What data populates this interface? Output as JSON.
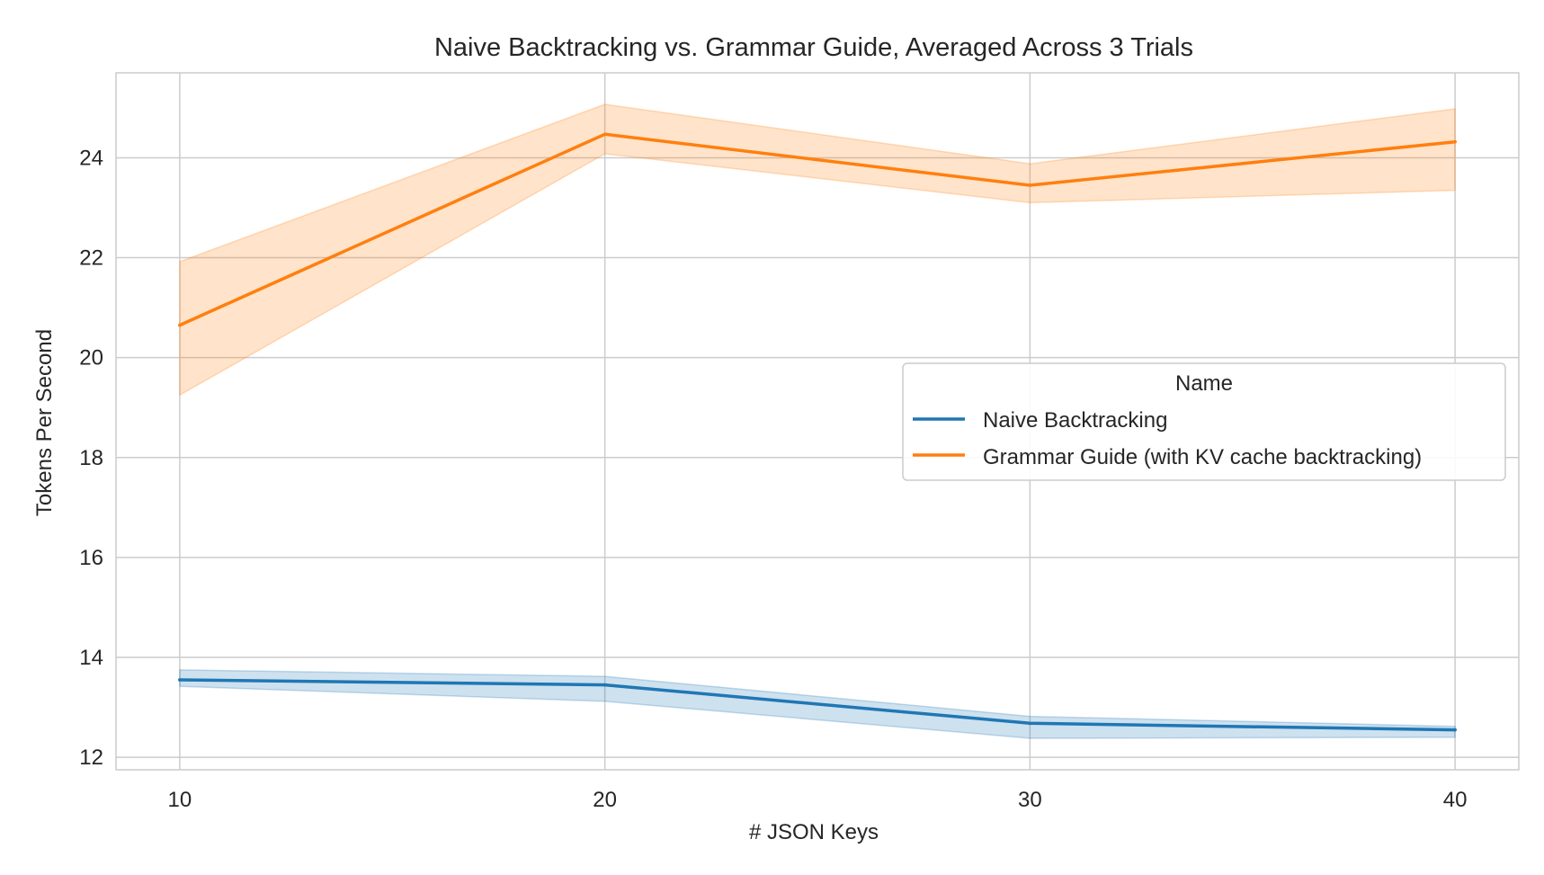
{
  "chart_data": {
    "type": "line",
    "title": "Naive Backtracking vs. Grammar Guide, Averaged Across 3 Trials",
    "xlabel": "# JSON Keys",
    "ylabel": "Tokens Per Second",
    "x": [
      10,
      20,
      30,
      40
    ],
    "xticks": [
      10,
      20,
      30,
      40
    ],
    "yticks": [
      12,
      14,
      16,
      18,
      20,
      22,
      24
    ],
    "xlim": [
      8.5,
      41.5
    ],
    "ylim": [
      11.75,
      25.7
    ],
    "grid": true,
    "legend": {
      "title": "Name",
      "placement": "center-right"
    },
    "series": [
      {
        "name": "Naive Backtracking",
        "color": "#1f77b4",
        "values": [
          13.55,
          13.45,
          12.68,
          12.55
        ],
        "ci_low": [
          13.42,
          13.12,
          12.38,
          12.4
        ],
        "ci_high": [
          13.75,
          13.62,
          12.82,
          12.62
        ]
      },
      {
        "name": "Grammar Guide (with KV cache backtracking)",
        "color": "#ff7f0e",
        "values": [
          20.65,
          24.47,
          23.45,
          24.32
        ],
        "ci_low": [
          19.25,
          24.08,
          23.1,
          23.35
        ],
        "ci_high": [
          21.92,
          25.07,
          23.88,
          24.98
        ]
      }
    ]
  }
}
